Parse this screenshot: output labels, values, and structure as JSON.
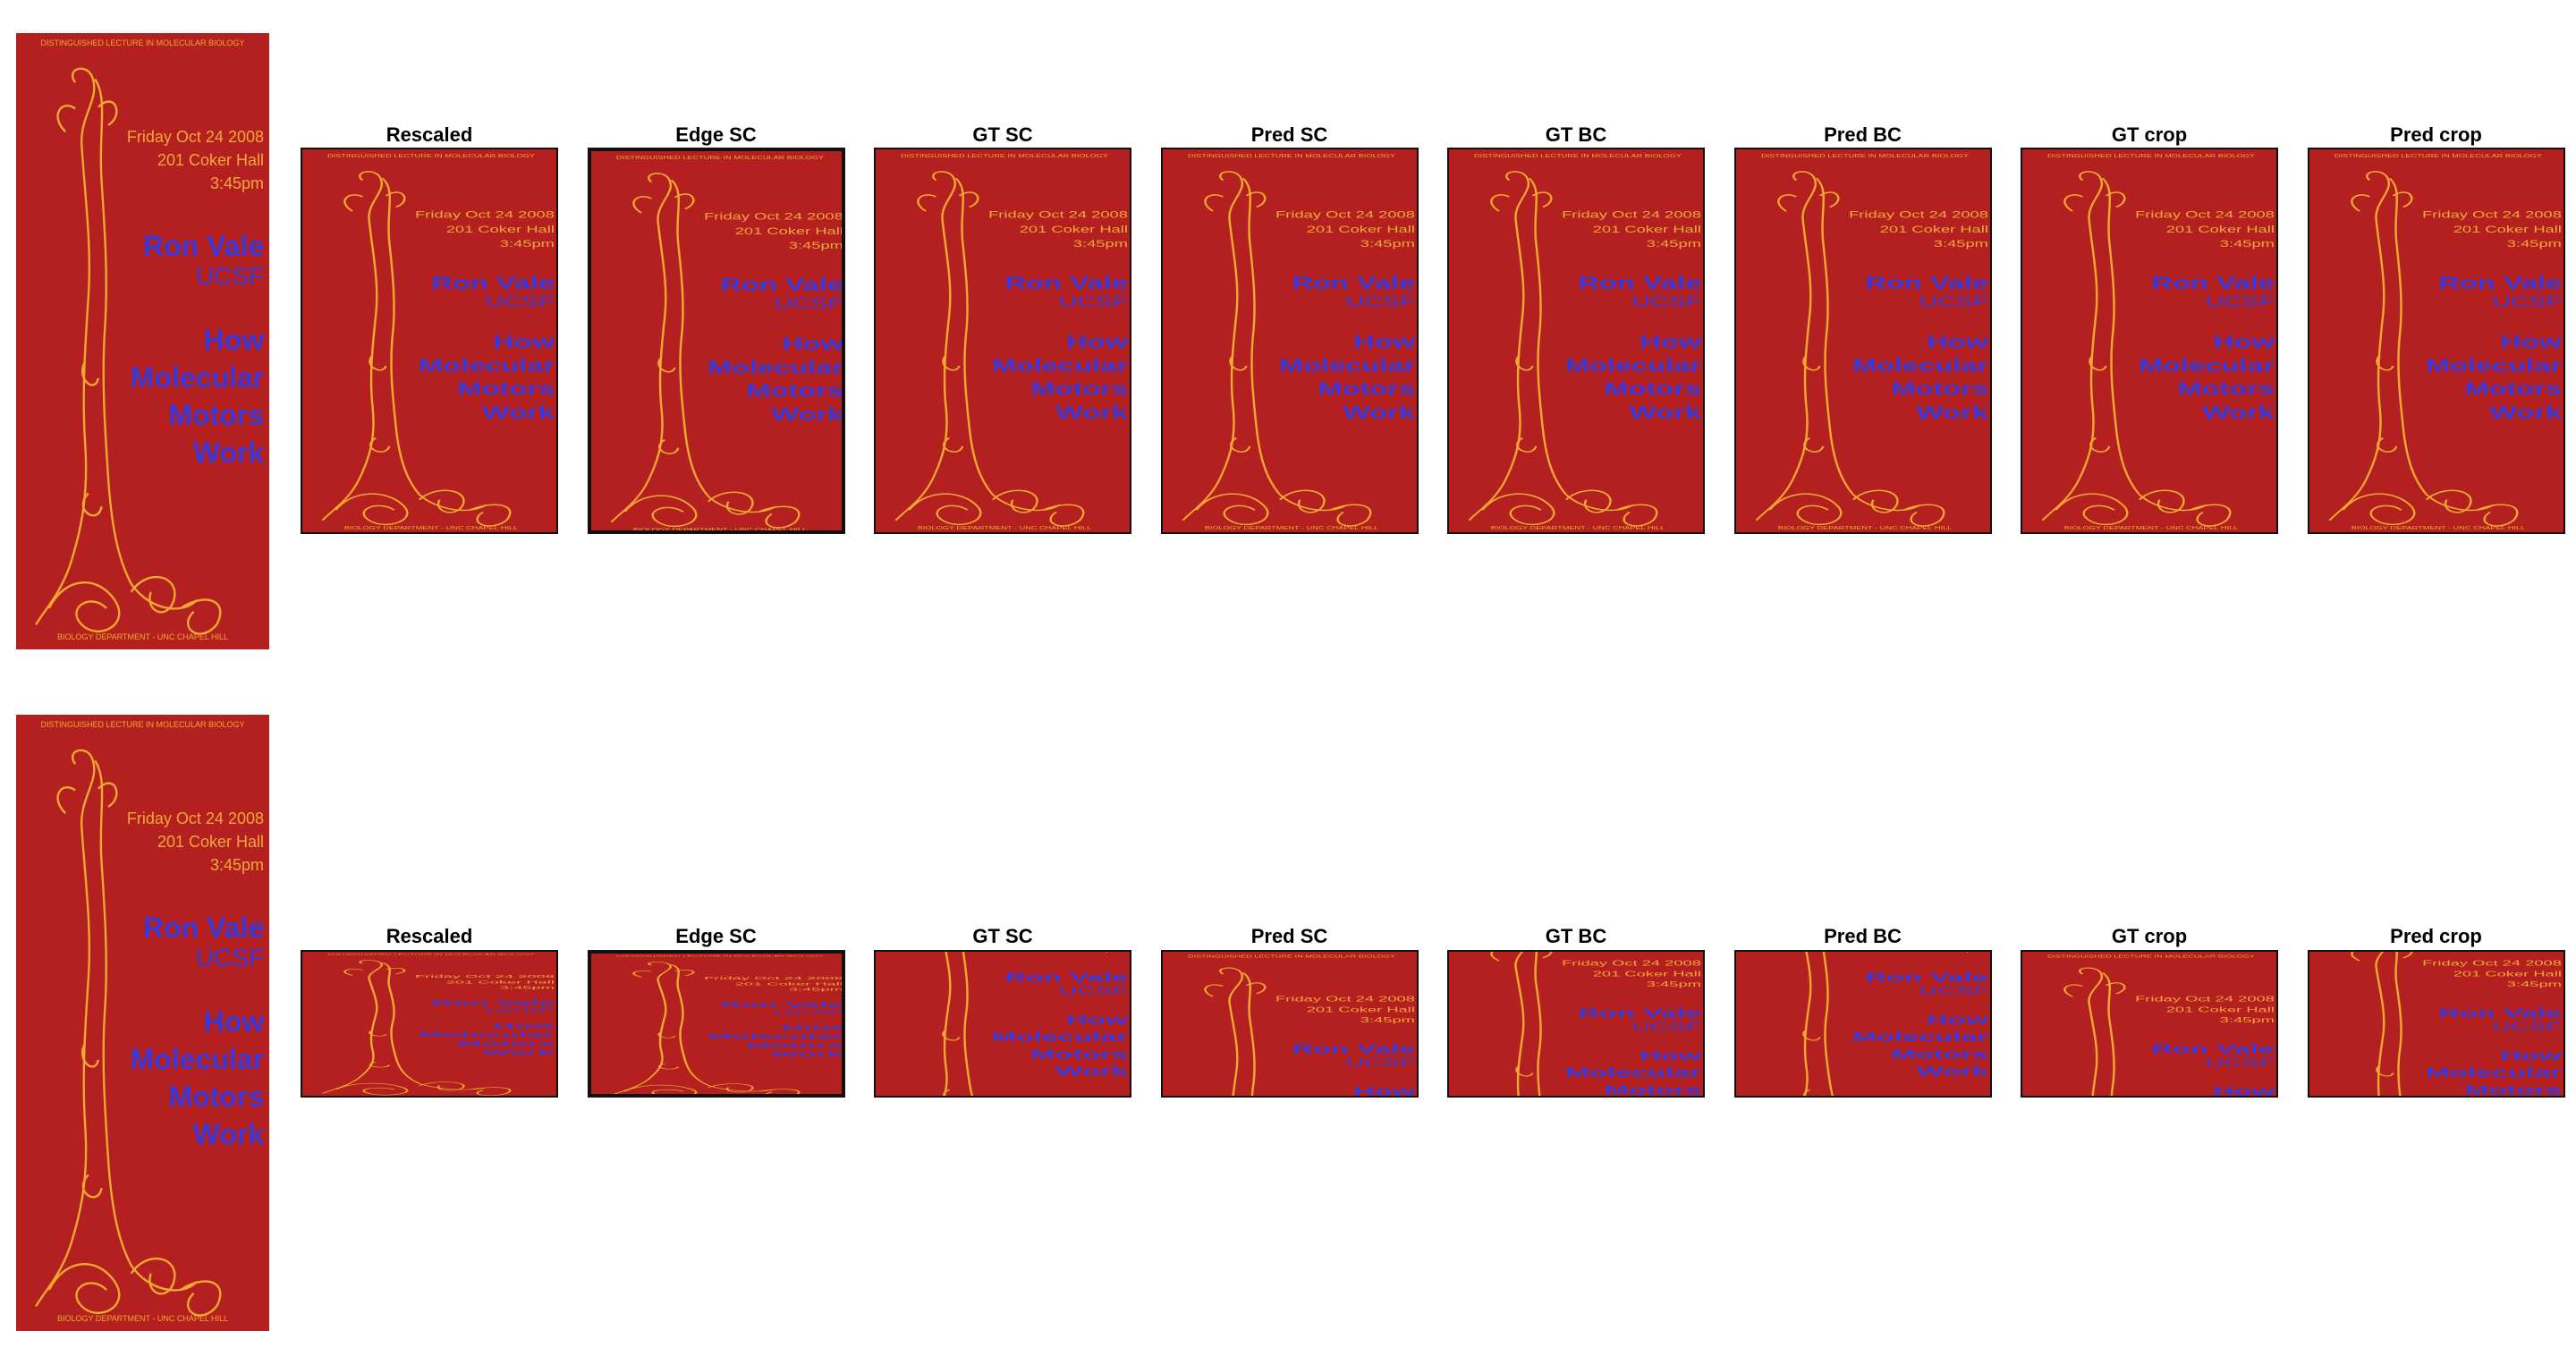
{
  "poster": {
    "header": "DISTINGUISHED LECTURE IN MOLECULAR BIOLOGY",
    "date": "Friday Oct 24 2008",
    "place": "201 Coker Hall",
    "time": "3:45pm",
    "speaker": "Ron Vale",
    "affiliation": "UCSF",
    "talk": [
      "How",
      "Molecular",
      "Motors",
      "Work"
    ],
    "footer": "BIOLOGY DEPARTMENT - UNC CHAPEL HILL"
  },
  "rows": [
    {
      "panels": [
        "Rescaled",
        "Edge SC",
        "GT SC",
        "Pred SC",
        "GT BC",
        "Pred BC",
        "GT crop",
        "Pred crop"
      ]
    },
    {
      "panels": [
        "Rescaled",
        "Edge SC",
        "GT SC",
        "Pred SC",
        "GT BC",
        "Pred BC",
        "GT crop",
        "Pred crop"
      ]
    }
  ]
}
